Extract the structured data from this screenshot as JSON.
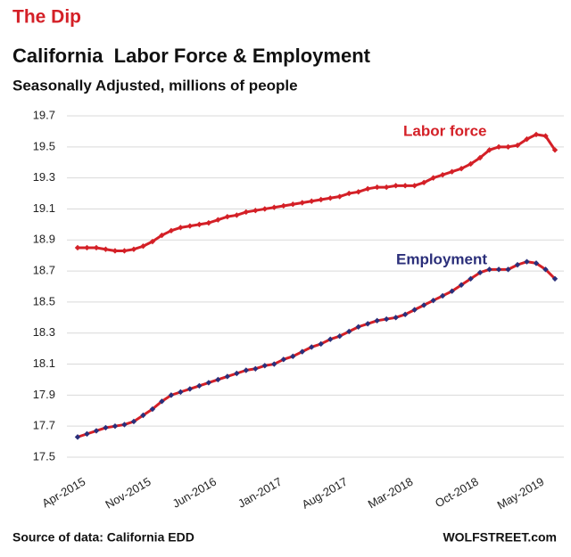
{
  "chart_data": {
    "type": "line",
    "kicker": "The Dip",
    "title": "California  Labor Force & Employment",
    "subtitle": "Seasonally Adjusted, millions of people",
    "source": "Source of data: California EDD",
    "credit": "WOLFSTREET.com",
    "categories": [
      "Apr-2015",
      null,
      null,
      null,
      null,
      null,
      null,
      "Nov-2015",
      null,
      null,
      null,
      null,
      null,
      null,
      "Jun-2016",
      null,
      null,
      null,
      null,
      null,
      null,
      "Jan-2017",
      null,
      null,
      null,
      null,
      null,
      null,
      "Aug-2017",
      null,
      null,
      null,
      null,
      null,
      null,
      "Mar-2018",
      null,
      null,
      null,
      null,
      null,
      null,
      "Oct-2018",
      null,
      null,
      null,
      null,
      null,
      null,
      "May-2019",
      null,
      null
    ],
    "series": [
      {
        "name": "Labor force",
        "color": "#d42027",
        "marker_color": "#d42027",
        "values": [
          18.85,
          18.85,
          18.85,
          18.84,
          18.83,
          18.83,
          18.84,
          18.86,
          18.89,
          18.93,
          18.96,
          18.98,
          18.99,
          19.0,
          19.01,
          19.03,
          19.05,
          19.06,
          19.08,
          19.09,
          19.1,
          19.11,
          19.12,
          19.13,
          19.14,
          19.15,
          19.16,
          19.17,
          19.18,
          19.2,
          19.21,
          19.23,
          19.24,
          19.24,
          19.25,
          19.25,
          19.25,
          19.27,
          19.3,
          19.32,
          19.34,
          19.36,
          19.39,
          19.43,
          19.48,
          19.5,
          19.5,
          19.51,
          19.55,
          19.58,
          19.57,
          19.48
        ]
      },
      {
        "name": "Employment",
        "color": "#d42027",
        "marker_color": "#2b2f7a",
        "values": [
          17.63,
          17.65,
          17.67,
          17.69,
          17.7,
          17.71,
          17.73,
          17.77,
          17.81,
          17.86,
          17.9,
          17.92,
          17.94,
          17.96,
          17.98,
          18.0,
          18.02,
          18.04,
          18.06,
          18.07,
          18.09,
          18.1,
          18.13,
          18.15,
          18.18,
          18.21,
          18.23,
          18.26,
          18.28,
          18.31,
          18.34,
          18.36,
          18.38,
          18.39,
          18.4,
          18.42,
          18.45,
          18.48,
          18.51,
          18.54,
          18.57,
          18.61,
          18.65,
          18.69,
          18.71,
          18.71,
          18.71,
          18.74,
          18.76,
          18.75,
          18.71,
          18.65
        ]
      }
    ],
    "ylim": [
      17.5,
      19.7
    ],
    "yticks": [
      17.5,
      17.7,
      17.9,
      18.1,
      18.3,
      18.5,
      18.7,
      18.9,
      19.1,
      19.3,
      19.5,
      19.7
    ],
    "grid": true
  }
}
